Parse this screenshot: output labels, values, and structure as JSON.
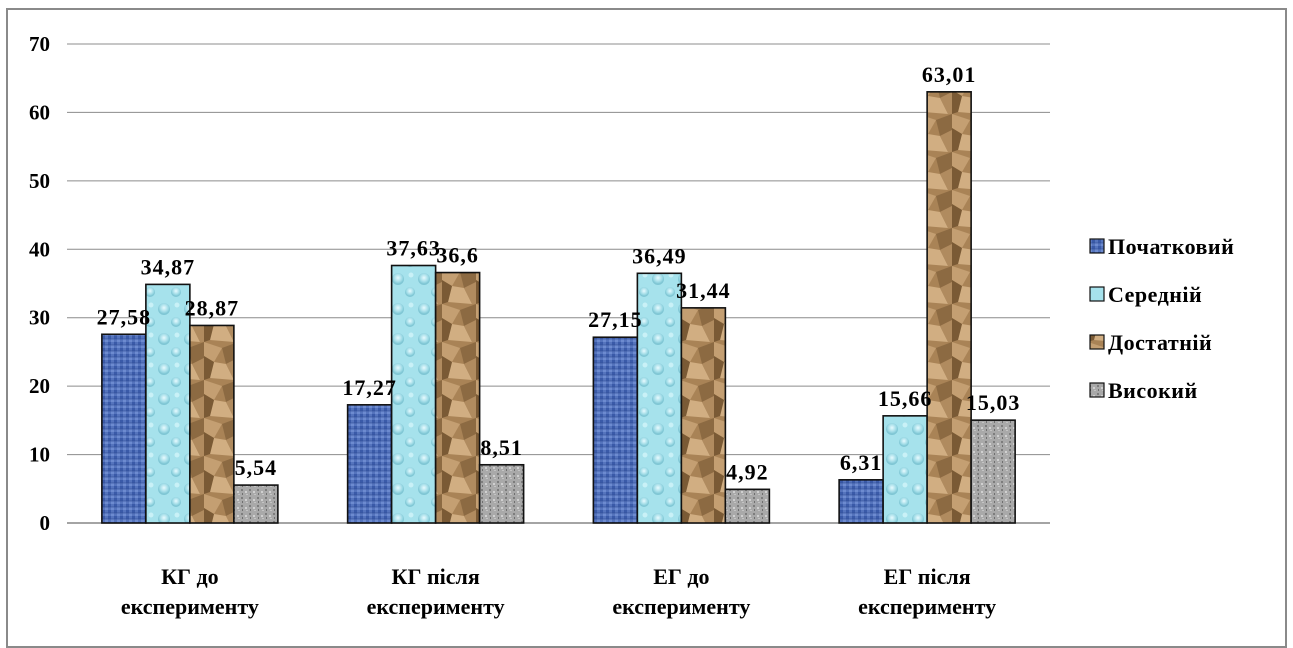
{
  "chart_data": {
    "type": "bar",
    "categories": [
      [
        "КГ до",
        "експерименту"
      ],
      [
        "КГ після",
        "експерименту"
      ],
      [
        "ЕГ до",
        "експерименту"
      ],
      [
        "ЕГ після",
        "експерименту"
      ]
    ],
    "series": [
      {
        "name": "Початковий",
        "values": [
          27.58,
          17.27,
          27.15,
          6.31
        ],
        "labels": [
          "27,58",
          "17,27",
          "27,15",
          "6,31"
        ],
        "color": "#4f6fb8",
        "texture": "woven-blue"
      },
      {
        "name": "Середній",
        "values": [
          34.87,
          37.63,
          36.49,
          15.66
        ],
        "labels": [
          "34,87",
          "37,63",
          "36,49",
          "15,66"
        ],
        "color": "#a9e4ee",
        "texture": "water-droplets"
      },
      {
        "name": "Достатній",
        "values": [
          28.87,
          36.6,
          31.44,
          63.01
        ],
        "labels": [
          "28,87",
          "36,6",
          "31,44",
          "63,01"
        ],
        "color": "#b08a5e",
        "texture": "crumpled-paper"
      },
      {
        "name": "Високий",
        "values": [
          5.54,
          8.51,
          4.92,
          15.03
        ],
        "labels": [
          "5,54",
          "8,51",
          "4,92",
          "15,03"
        ],
        "color": "#a8a8a8",
        "texture": "granite"
      }
    ],
    "yticks": [
      "0",
      "10",
      "20",
      "30",
      "40",
      "50",
      "60",
      "70"
    ],
    "ylim": [
      0,
      70
    ],
    "grid": true,
    "legend_position": "right",
    "title": "",
    "xlabel": "",
    "ylabel": ""
  }
}
